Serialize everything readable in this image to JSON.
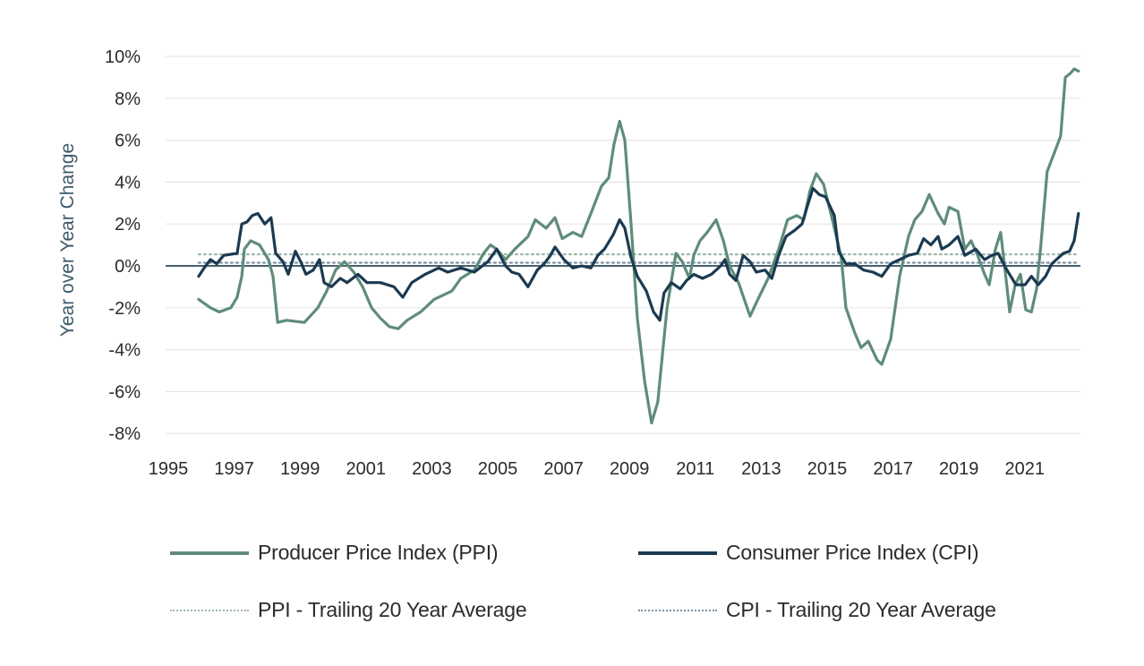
{
  "chart_data": {
    "type": "line",
    "title": "",
    "xlabel": "",
    "ylabel": "Year over Year Change",
    "xlim": [
      1995,
      2022.7
    ],
    "ylim": [
      -8,
      10
    ],
    "x_ticks": [
      1995,
      1997,
      1999,
      2001,
      2003,
      2005,
      2007,
      2009,
      2011,
      2013,
      2015,
      2017,
      2019,
      2021
    ],
    "x_tick_labels": [
      "1995",
      "1997",
      "1999",
      "2001",
      "2003",
      "2005",
      "2007",
      "2009",
      "2011",
      "2013",
      "2015",
      "2017",
      "2019",
      "2021"
    ],
    "y_ticks": [
      10,
      8,
      6,
      4,
      2,
      0,
      -2,
      -4,
      -6,
      -8
    ],
    "y_tick_labels": [
      "10%",
      "8%",
      "6%",
      "4%",
      "2%",
      "0%",
      "-2%",
      "-4%",
      "-6%",
      "-8%"
    ],
    "grid": true,
    "legend_position": "bottom",
    "series": [
      {
        "name": "Producer Price Index (PPI)",
        "style": "solid",
        "color": "#5f8c7a",
        "points": [
          [
            1995.92,
            -1.6
          ],
          [
            1996.28,
            -2.0
          ],
          [
            1996.55,
            -2.2
          ],
          [
            1996.9,
            -2.0
          ],
          [
            1997.09,
            -1.5
          ],
          [
            1997.23,
            -0.5
          ],
          [
            1997.31,
            0.8
          ],
          [
            1997.5,
            1.2
          ],
          [
            1997.77,
            1.0
          ],
          [
            1998.04,
            0.3
          ],
          [
            1998.18,
            -0.5
          ],
          [
            1998.32,
            -2.7
          ],
          [
            1998.59,
            -2.6
          ],
          [
            1999.13,
            -2.7
          ],
          [
            1999.54,
            -2.0
          ],
          [
            1999.81,
            -1.2
          ],
          [
            2000.08,
            -0.2
          ],
          [
            2000.35,
            0.2
          ],
          [
            2000.63,
            -0.3
          ],
          [
            2000.9,
            -1.0
          ],
          [
            2001.17,
            -2.0
          ],
          [
            2001.44,
            -2.5
          ],
          [
            2001.71,
            -2.9
          ],
          [
            2001.98,
            -3.0
          ],
          [
            2002.25,
            -2.6
          ],
          [
            2002.66,
            -2.2
          ],
          [
            2003.07,
            -1.6
          ],
          [
            2003.34,
            -1.4
          ],
          [
            2003.61,
            -1.2
          ],
          [
            2003.88,
            -0.6
          ],
          [
            2004.29,
            -0.2
          ],
          [
            2004.57,
            0.6
          ],
          [
            2004.78,
            1.0
          ],
          [
            2004.97,
            0.8
          ],
          [
            2005.24,
            0.3
          ],
          [
            2005.52,
            0.8
          ],
          [
            2005.92,
            1.4
          ],
          [
            2006.14,
            2.2
          ],
          [
            2006.47,
            1.8
          ],
          [
            2006.74,
            2.3
          ],
          [
            2006.96,
            1.3
          ],
          [
            2007.28,
            1.6
          ],
          [
            2007.55,
            1.4
          ],
          [
            2007.83,
            2.5
          ],
          [
            2008.15,
            3.8
          ],
          [
            2008.37,
            4.2
          ],
          [
            2008.53,
            5.8
          ],
          [
            2008.7,
            6.9
          ],
          [
            2008.86,
            6.0
          ],
          [
            2009.05,
            2.0
          ],
          [
            2009.24,
            -2.5
          ],
          [
            2009.46,
            -5.5
          ],
          [
            2009.67,
            -7.5
          ],
          [
            2009.86,
            -6.5
          ],
          [
            2010.14,
            -2.0
          ],
          [
            2010.41,
            0.6
          ],
          [
            2010.6,
            0.2
          ],
          [
            2010.82,
            -0.6
          ],
          [
            2010.95,
            0.5
          ],
          [
            2011.14,
            1.2
          ],
          [
            2011.36,
            1.6
          ],
          [
            2011.63,
            2.2
          ],
          [
            2011.85,
            1.2
          ],
          [
            2012.04,
            0.0
          ],
          [
            2012.31,
            -0.8
          ],
          [
            2012.66,
            -2.4
          ],
          [
            2012.93,
            -1.5
          ],
          [
            2013.21,
            -0.6
          ],
          [
            2013.53,
            0.8
          ],
          [
            2013.8,
            2.2
          ],
          [
            2014.08,
            2.4
          ],
          [
            2014.29,
            2.2
          ],
          [
            2014.48,
            3.6
          ],
          [
            2014.67,
            4.4
          ],
          [
            2014.89,
            3.9
          ],
          [
            2015.16,
            2.2
          ],
          [
            2015.43,
            0.4
          ],
          [
            2015.57,
            -2.0
          ],
          [
            2015.84,
            -3.2
          ],
          [
            2016.03,
            -3.9
          ],
          [
            2016.25,
            -3.6
          ],
          [
            2016.52,
            -4.5
          ],
          [
            2016.66,
            -4.7
          ],
          [
            2016.93,
            -3.5
          ],
          [
            2017.2,
            -0.5
          ],
          [
            2017.47,
            1.4
          ],
          [
            2017.66,
            2.2
          ],
          [
            2017.88,
            2.6
          ],
          [
            2018.1,
            3.4
          ],
          [
            2018.37,
            2.5
          ],
          [
            2018.56,
            2.0
          ],
          [
            2018.7,
            2.8
          ],
          [
            2018.97,
            2.6
          ],
          [
            2019.18,
            0.8
          ],
          [
            2019.37,
            1.2
          ],
          [
            2019.57,
            0.5
          ],
          [
            2019.78,
            -0.4
          ],
          [
            2019.92,
            -0.9
          ],
          [
            2020.11,
            0.8
          ],
          [
            2020.27,
            1.6
          ],
          [
            2020.46,
            -1.0
          ],
          [
            2020.54,
            -2.2
          ],
          [
            2020.71,
            -0.9
          ],
          [
            2020.87,
            -0.4
          ],
          [
            2021.03,
            -2.1
          ],
          [
            2021.2,
            -2.2
          ],
          [
            2021.36,
            -1.1
          ],
          [
            2021.49,
            1.0
          ],
          [
            2021.68,
            4.5
          ],
          [
            2021.9,
            5.4
          ],
          [
            2022.09,
            6.2
          ],
          [
            2022.23,
            9.0
          ],
          [
            2022.39,
            9.2
          ],
          [
            2022.5,
            9.4
          ],
          [
            2022.63,
            9.3
          ]
        ]
      },
      {
        "name": "Consumer Price Index (CPI)",
        "style": "solid",
        "color": "#1b3a52",
        "points": [
          [
            1995.92,
            -0.5
          ],
          [
            1996.09,
            -0.1
          ],
          [
            1996.28,
            0.3
          ],
          [
            1996.47,
            0.1
          ],
          [
            1996.68,
            0.5
          ],
          [
            1997.09,
            0.6
          ],
          [
            1997.23,
            2.0
          ],
          [
            1997.39,
            2.1
          ],
          [
            1997.55,
            2.4
          ],
          [
            1997.72,
            2.5
          ],
          [
            1997.93,
            2.0
          ],
          [
            1998.12,
            2.3
          ],
          [
            1998.26,
            0.6
          ],
          [
            1998.48,
            0.2
          ],
          [
            1998.64,
            -0.4
          ],
          [
            1998.86,
            0.7
          ],
          [
            1999.02,
            0.2
          ],
          [
            1999.18,
            -0.4
          ],
          [
            1999.4,
            -0.2
          ],
          [
            1999.59,
            0.3
          ],
          [
            1999.73,
            -0.8
          ],
          [
            1999.95,
            -1.0
          ],
          [
            2000.22,
            -0.6
          ],
          [
            2000.43,
            -0.8
          ],
          [
            2000.76,
            -0.4
          ],
          [
            2001.03,
            -0.8
          ],
          [
            2001.44,
            -0.8
          ],
          [
            2001.85,
            -1.0
          ],
          [
            2002.12,
            -1.5
          ],
          [
            2002.39,
            -0.8
          ],
          [
            2002.8,
            -0.4
          ],
          [
            2003.21,
            -0.1
          ],
          [
            2003.48,
            -0.3
          ],
          [
            2003.88,
            -0.1
          ],
          [
            2004.29,
            -0.3
          ],
          [
            2004.7,
            0.2
          ],
          [
            2004.97,
            0.8
          ],
          [
            2005.24,
            0.0
          ],
          [
            2005.43,
            -0.3
          ],
          [
            2005.65,
            -0.4
          ],
          [
            2005.92,
            -1.0
          ],
          [
            2006.2,
            -0.2
          ],
          [
            2006.41,
            0.1
          ],
          [
            2006.6,
            0.5
          ],
          [
            2006.74,
            0.9
          ],
          [
            2007.01,
            0.3
          ],
          [
            2007.28,
            -0.1
          ],
          [
            2007.55,
            0.0
          ],
          [
            2007.83,
            -0.1
          ],
          [
            2008.04,
            0.5
          ],
          [
            2008.24,
            0.8
          ],
          [
            2008.51,
            1.5
          ],
          [
            2008.7,
            2.2
          ],
          [
            2008.86,
            1.8
          ],
          [
            2009.05,
            0.4
          ],
          [
            2009.24,
            -0.5
          ],
          [
            2009.51,
            -1.2
          ],
          [
            2009.73,
            -2.2
          ],
          [
            2009.92,
            -2.6
          ],
          [
            2010.05,
            -1.3
          ],
          [
            2010.27,
            -0.8
          ],
          [
            2010.54,
            -1.1
          ],
          [
            2010.73,
            -0.7
          ],
          [
            2010.95,
            -0.4
          ],
          [
            2011.22,
            -0.6
          ],
          [
            2011.49,
            -0.4
          ],
          [
            2011.77,
            0.0
          ],
          [
            2011.9,
            0.3
          ],
          [
            2012.04,
            -0.4
          ],
          [
            2012.23,
            -0.7
          ],
          [
            2012.45,
            0.5
          ],
          [
            2012.66,
            0.2
          ],
          [
            2012.85,
            -0.3
          ],
          [
            2013.12,
            -0.2
          ],
          [
            2013.32,
            -0.6
          ],
          [
            2013.53,
            0.5
          ],
          [
            2013.75,
            1.4
          ],
          [
            2014.02,
            1.7
          ],
          [
            2014.24,
            2.0
          ],
          [
            2014.43,
            3.0
          ],
          [
            2014.57,
            3.7
          ],
          [
            2014.76,
            3.4
          ],
          [
            2014.95,
            3.3
          ],
          [
            2015.22,
            2.4
          ],
          [
            2015.35,
            0.7
          ],
          [
            2015.57,
            0.1
          ],
          [
            2015.84,
            0.1
          ],
          [
            2016.11,
            -0.2
          ],
          [
            2016.39,
            -0.3
          ],
          [
            2016.66,
            -0.5
          ],
          [
            2016.93,
            0.1
          ],
          [
            2017.2,
            0.3
          ],
          [
            2017.47,
            0.5
          ],
          [
            2017.74,
            0.6
          ],
          [
            2017.93,
            1.3
          ],
          [
            2018.15,
            1.0
          ],
          [
            2018.37,
            1.4
          ],
          [
            2018.48,
            0.8
          ],
          [
            2018.7,
            1.0
          ],
          [
            2018.97,
            1.4
          ],
          [
            2019.18,
            0.5
          ],
          [
            2019.51,
            0.8
          ],
          [
            2019.78,
            0.3
          ],
          [
            2020.0,
            0.5
          ],
          [
            2020.19,
            0.6
          ],
          [
            2020.46,
            -0.2
          ],
          [
            2020.73,
            -0.9
          ],
          [
            2021.01,
            -0.9
          ],
          [
            2021.2,
            -0.5
          ],
          [
            2021.41,
            -0.9
          ],
          [
            2021.63,
            -0.5
          ],
          [
            2021.82,
            0.1
          ],
          [
            2021.96,
            0.3
          ],
          [
            2022.17,
            0.6
          ],
          [
            2022.36,
            0.7
          ],
          [
            2022.5,
            1.2
          ],
          [
            2022.63,
            2.5
          ]
        ]
      },
      {
        "name": "PPI - Trailing 20 Year Average",
        "style": "dotted",
        "color": "#9fb8ae",
        "points": [
          [
            1995.92,
            0.55
          ],
          [
            2022.63,
            0.55
          ]
        ]
      },
      {
        "name": "CPI - Trailing 20 Year Average",
        "style": "dotted",
        "color": "#7d93a3",
        "points": [
          [
            1995.92,
            0.15
          ],
          [
            2022.63,
            0.15
          ]
        ]
      }
    ]
  },
  "legend": {
    "items": [
      {
        "label": "Producer Price Index (PPI)",
        "style": "solid",
        "color": "#5f8c7a"
      },
      {
        "label": "Consumer Price Index (CPI)",
        "style": "solid",
        "color": "#1b3a52"
      },
      {
        "label": "PPI - Trailing 20 Year Average",
        "style": "dotted",
        "color": "#9fb8ae"
      },
      {
        "label": "CPI - Trailing 20 Year Average",
        "style": "dotted",
        "color": "#7d93a3"
      }
    ]
  },
  "colors": {
    "gridline": "#e6e6e6",
    "zero_line": "#2e4a58",
    "axis_title": "#3c5a6b",
    "tick_text": "#2b2b2b"
  }
}
